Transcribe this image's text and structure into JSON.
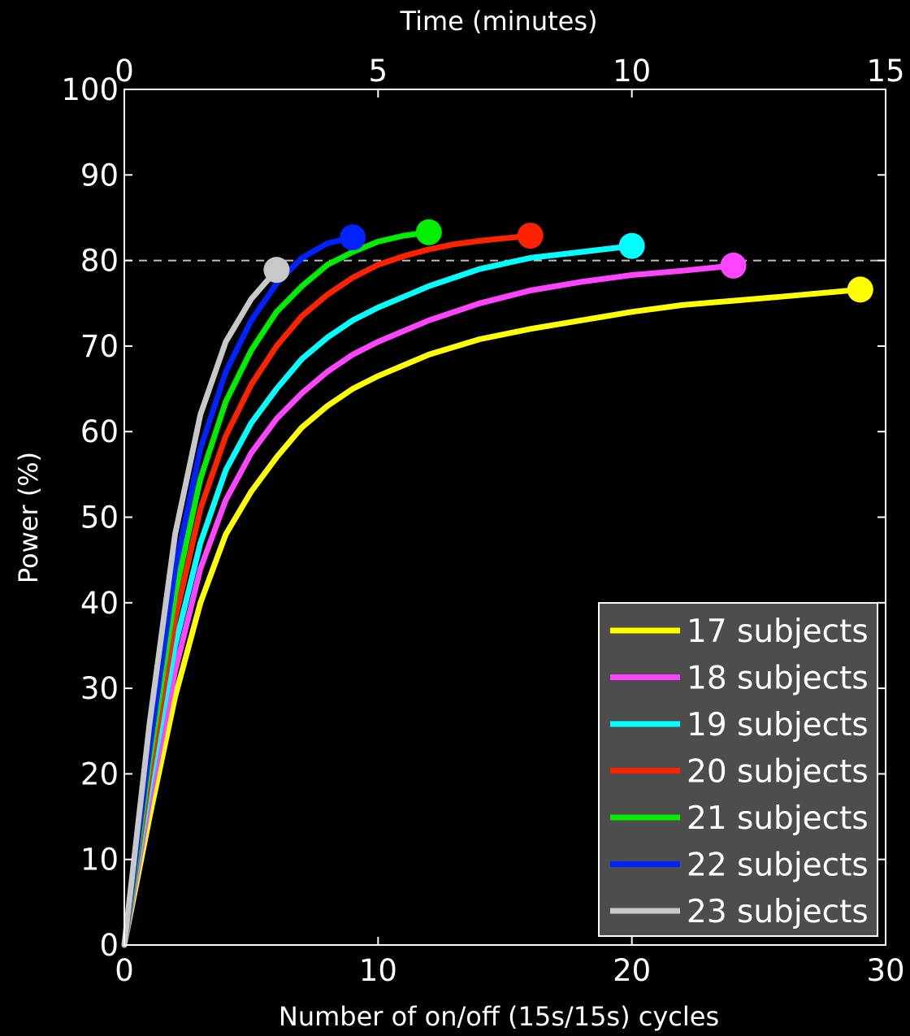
{
  "chart_data": {
    "type": "line",
    "title": "",
    "xlabel": "Number of on/off (15s/15s) cycles",
    "ylabel": "Power (%)",
    "x2label": "Time (minutes)",
    "xlim": [
      0,
      30
    ],
    "ylim": [
      0,
      100
    ],
    "x2lim": [
      0,
      15
    ],
    "xticks": [
      "0",
      "10",
      "20",
      "30"
    ],
    "yticks": [
      "0",
      "10",
      "20",
      "30",
      "40",
      "50",
      "60",
      "70",
      "80",
      "90",
      "100"
    ],
    "x2ticks": [
      "0",
      "5",
      "10",
      "15"
    ],
    "reference_line": {
      "y": 80,
      "style": "dashed",
      "color": "#bfbfbf"
    },
    "grid": false,
    "legend_position": "bottom-right",
    "background": "#000000",
    "axis_color": "#ffffff",
    "series": [
      {
        "name": "17 subjects",
        "color": "#ffff00",
        "x": [
          0,
          1,
          2,
          3,
          4,
          5,
          6,
          7,
          8,
          9,
          10,
          12,
          14,
          16,
          18,
          20,
          22,
          24,
          26,
          29
        ],
        "y": [
          0,
          15,
          29,
          40,
          48,
          53,
          57,
          60.5,
          63,
          65,
          66.5,
          69,
          70.8,
          72,
          73,
          74,
          74.8,
          75.3,
          75.8,
          76.6
        ]
      },
      {
        "name": "18 subjects",
        "color": "#ff44ff",
        "x": [
          0,
          1,
          2,
          3,
          4,
          5,
          6,
          7,
          8,
          9,
          10,
          12,
          14,
          16,
          18,
          20,
          22,
          24
        ],
        "y": [
          0,
          17,
          32,
          44,
          52,
          57.5,
          61.5,
          64.5,
          67,
          69,
          70.5,
          73,
          75,
          76.5,
          77.5,
          78.3,
          78.8,
          79.4
        ]
      },
      {
        "name": "19 subjects",
        "color": "#00ffff",
        "x": [
          0,
          1,
          2,
          3,
          4,
          5,
          6,
          7,
          8,
          9,
          10,
          12,
          14,
          16,
          18,
          20
        ],
        "y": [
          0,
          18.5,
          35,
          47,
          55.5,
          61,
          65,
          68.5,
          71,
          73,
          74.5,
          77,
          79,
          80.3,
          81,
          81.7
        ]
      },
      {
        "name": "20 subjects",
        "color": "#ff2200",
        "x": [
          0,
          1,
          2,
          3,
          4,
          5,
          6,
          7,
          8,
          9,
          10,
          11,
          12,
          13,
          14,
          15,
          16
        ],
        "y": [
          0,
          20,
          38,
          51,
          59.5,
          65.5,
          70,
          73.5,
          76,
          78,
          79.5,
          80.5,
          81.3,
          81.9,
          82.3,
          82.6,
          82.9
        ]
      },
      {
        "name": "21 subjects",
        "color": "#00ee00",
        "x": [
          0,
          1,
          2,
          3,
          4,
          5,
          6,
          7,
          8,
          9,
          10,
          11,
          12
        ],
        "y": [
          0,
          21.5,
          41,
          54.5,
          63.5,
          69.5,
          74,
          77,
          79.5,
          81,
          82.2,
          82.9,
          83.3
        ]
      },
      {
        "name": "22 subjects",
        "color": "#0022ff",
        "x": [
          0,
          1,
          2,
          3,
          4,
          5,
          6,
          7,
          8,
          9
        ],
        "y": [
          0,
          23,
          44,
          58,
          67,
          73,
          77.3,
          80.3,
          82,
          82.7
        ]
      },
      {
        "name": "23 subjects",
        "color": "#c8c8c8",
        "x": [
          0,
          1,
          2,
          3,
          4,
          5,
          6
        ],
        "y": [
          0,
          26,
          48,
          62,
          70.5,
          75.5,
          78.9
        ]
      }
    ]
  }
}
